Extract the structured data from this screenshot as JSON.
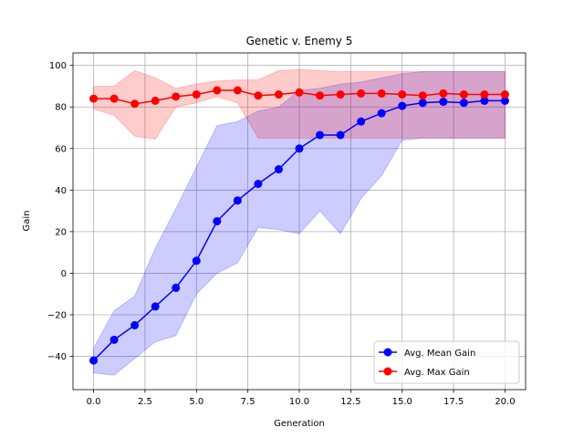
{
  "chart_data": {
    "type": "line",
    "title": "Genetic v. Enemy 5",
    "xlabel": "Generation",
    "ylabel": "Gain",
    "xlim": [
      -1,
      21
    ],
    "ylim": [
      -56,
      106
    ],
    "x_ticks": [
      0.0,
      2.5,
      5.0,
      7.5,
      10.0,
      12.5,
      15.0,
      17.5,
      20.0
    ],
    "x_tick_labels": [
      "0.0",
      "2.5",
      "5.0",
      "7.5",
      "10.0",
      "12.5",
      "15.0",
      "17.5",
      "20.0"
    ],
    "y_ticks": [
      -40,
      -20,
      0,
      20,
      40,
      60,
      80,
      100
    ],
    "y_tick_labels": [
      "−40",
      "−20",
      "0",
      "20",
      "40",
      "60",
      "80",
      "100"
    ],
    "grid": true,
    "legend_position": "lower-right",
    "x": [
      0,
      1,
      2,
      3,
      4,
      5,
      6,
      7,
      8,
      9,
      10,
      11,
      12,
      13,
      14,
      15,
      16,
      17,
      18,
      19,
      20
    ],
    "series": [
      {
        "name": "Avg. Mean Gain",
        "color": "#0000ff",
        "band_color": "#0000ff",
        "values": [
          -42,
          -32,
          -25,
          -16,
          -7,
          6,
          25,
          35,
          43,
          50,
          60,
          66.5,
          66.5,
          73,
          77,
          80.5,
          82,
          82.5,
          82,
          83,
          83
        ],
        "band_lower": [
          -48,
          -49,
          -41,
          -33,
          -30,
          -10,
          0,
          5,
          22,
          21,
          19,
          30,
          19,
          36,
          47,
          64,
          65,
          65,
          65,
          65,
          65
        ],
        "band_upper": [
          -36,
          -18,
          -11,
          12,
          31,
          51,
          71,
          73,
          78,
          80,
          88,
          89,
          91,
          92,
          94,
          96,
          97,
          97,
          97,
          97,
          97
        ]
      },
      {
        "name": "Avg. Max Gain",
        "color": "#ff0000",
        "band_color": "#ff0000",
        "values": [
          84,
          84,
          81.5,
          83,
          85,
          86,
          88,
          88,
          85.5,
          86,
          87,
          85.5,
          86,
          86.5,
          86.5,
          86,
          85.5,
          86.5,
          86,
          86,
          86
        ],
        "band_lower": [
          79,
          76,
          66,
          64.5,
          80,
          82,
          85,
          82,
          65,
          65,
          65,
          65,
          65,
          65,
          65,
          65,
          65,
          65,
          65,
          65,
          65
        ],
        "band_upper": [
          90,
          90,
          97.5,
          94,
          89,
          91,
          92.5,
          93,
          93,
          97.5,
          98,
          97.5,
          97,
          97,
          97,
          97,
          97,
          97,
          97,
          97,
          97
        ]
      }
    ]
  }
}
